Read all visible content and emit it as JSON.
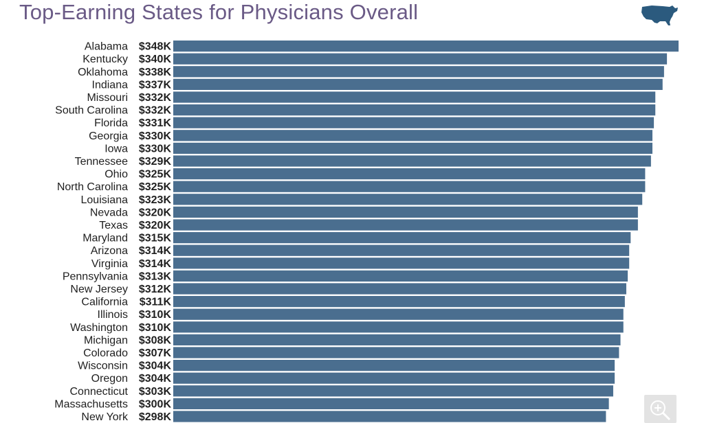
{
  "header": {
    "title": "Top-Earning States for Physicians Overall"
  },
  "icons": {
    "map": "usa-map-icon",
    "zoom": "zoom-in-icon"
  },
  "colors": {
    "bar": "#4a6e8f",
    "title": "#6a5a86",
    "map": "#2b5a7e"
  },
  "chart_data": {
    "type": "bar",
    "orientation": "horizontal",
    "title": "Top-Earning States for Physicians Overall",
    "unit": "$K",
    "xlim": [
      0,
      348
    ],
    "categories": [
      "Alabama",
      "Kentucky",
      "Oklahoma",
      "Indiana",
      "Missouri",
      "South Carolina",
      "Florida",
      "Georgia",
      "Iowa",
      "Tennessee",
      "Ohio",
      "North Carolina",
      "Louisiana",
      "Nevada",
      "Texas",
      "Maryland",
      "Arizona",
      "Virginia",
      "Pennsylvania",
      "New Jersey",
      "California",
      "Illinois",
      "Washington",
      "Michigan",
      "Colorado",
      "Wisconsin",
      "Oregon",
      "Connecticut",
      "Massachusetts",
      "New York"
    ],
    "values": [
      348,
      340,
      338,
      337,
      332,
      332,
      331,
      330,
      330,
      329,
      325,
      325,
      323,
      320,
      320,
      315,
      314,
      314,
      313,
      312,
      311,
      310,
      310,
      308,
      307,
      304,
      304,
      303,
      300,
      298
    ],
    "value_labels": [
      "$348K",
      "$340K",
      "$338K",
      "$337K",
      "$332K",
      "$332K",
      "$331K",
      "$330K",
      "$330K",
      "$329K",
      "$325K",
      "$325K",
      "$323K",
      "$320K",
      "$320K",
      "$315K",
      "$314K",
      "$314K",
      "$313K",
      "$312K",
      "$311K",
      "$310K",
      "$310K",
      "$308K",
      "$307K",
      "$304K",
      "$304K",
      "$303K",
      "$300K",
      "$298K"
    ]
  }
}
